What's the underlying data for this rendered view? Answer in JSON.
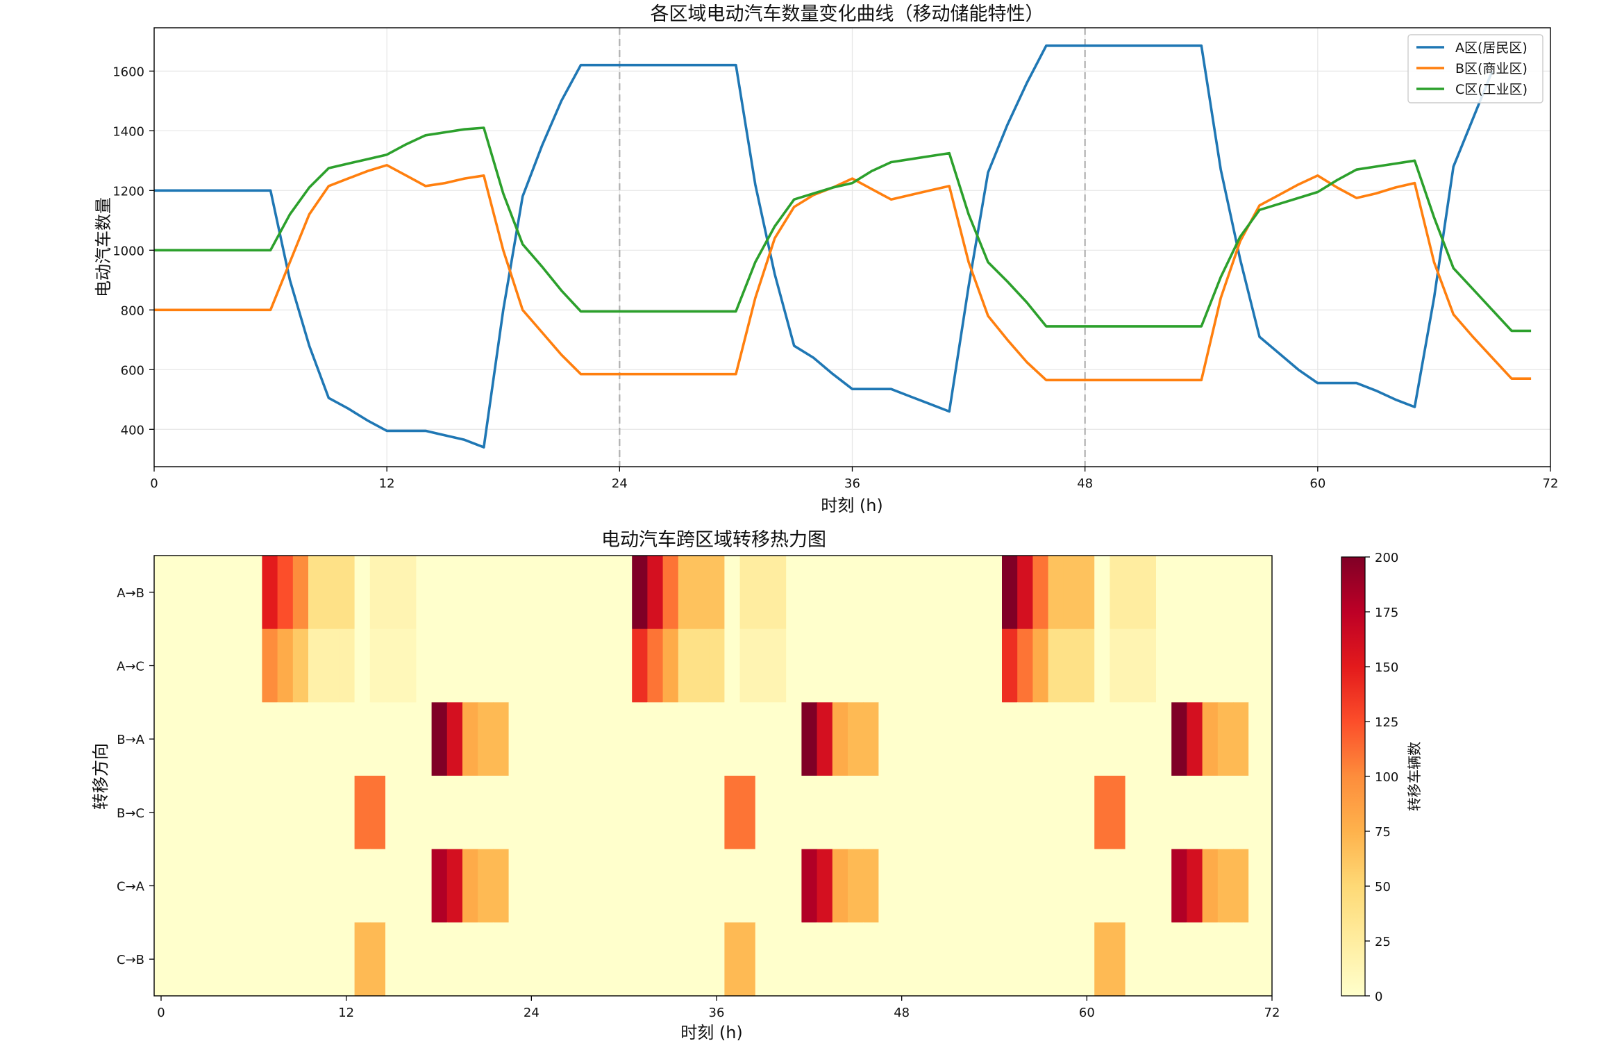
{
  "chart_data": [
    {
      "type": "line",
      "title": "各区域电动汽车数量变化曲线（移动储能特性）",
      "xlabel": "时刻 (h)",
      "ylabel": "电动汽车数量",
      "xlim": [
        0,
        72
      ],
      "ylim": [
        275,
        1745
      ],
      "xticks": [
        0,
        12,
        24,
        36,
        48,
        60,
        72
      ],
      "yticks": [
        400,
        600,
        800,
        1000,
        1200,
        1400,
        1600
      ],
      "grid": true,
      "legend_position": "top-right",
      "vlines": [
        24,
        48
      ],
      "x": [
        0,
        1,
        2,
        3,
        4,
        5,
        6,
        7,
        8,
        9,
        10,
        11,
        12,
        13,
        14,
        15,
        16,
        17,
        18,
        19,
        20,
        21,
        22,
        23,
        24,
        25,
        26,
        27,
        28,
        29,
        30,
        31,
        32,
        33,
        34,
        35,
        36,
        37,
        38,
        39,
        40,
        41,
        42,
        43,
        44,
        45,
        46,
        47,
        48,
        49,
        50,
        51,
        52,
        53,
        54,
        55,
        56,
        57,
        58,
        59,
        60,
        61,
        62,
        63,
        64,
        65,
        66,
        67,
        68,
        69,
        70,
        71
      ],
      "series": [
        {
          "name": "A区(居民区)",
          "color": "#1f77b4",
          "values": [
            1200,
            1200,
            1200,
            1200,
            1200,
            1200,
            1200,
            900,
            680,
            505,
            470,
            430,
            395,
            395,
            395,
            380,
            365,
            340,
            800,
            1180,
            1350,
            1500,
            1620,
            1620,
            1620,
            1620,
            1620,
            1620,
            1620,
            1620,
            1620,
            1220,
            920,
            680,
            640,
            585,
            535,
            535,
            535,
            510,
            485,
            460,
            880,
            1260,
            1420,
            1560,
            1685,
            1685,
            1685,
            1685,
            1685,
            1685,
            1685,
            1685,
            1685,
            1270,
            970,
            710,
            655,
            600,
            555,
            555,
            555,
            530,
            500,
            475,
            840,
            1280,
            1440,
            1600,
            null,
            null
          ]
        },
        {
          "name": "B区(商业区)",
          "color": "#ff7f0e",
          "values": [
            800,
            800,
            800,
            800,
            800,
            800,
            800,
            960,
            1120,
            1215,
            1240,
            1265,
            1285,
            1250,
            1215,
            1225,
            1240,
            1250,
            1000,
            800,
            725,
            650,
            585,
            585,
            585,
            585,
            585,
            585,
            585,
            585,
            585,
            840,
            1040,
            1145,
            1185,
            1210,
            1240,
            1205,
            1170,
            1185,
            1200,
            1215,
            960,
            780,
            700,
            625,
            565,
            565,
            565,
            565,
            565,
            565,
            565,
            565,
            565,
            840,
            1030,
            1150,
            1185,
            1220,
            1250,
            1210,
            1175,
            1190,
            1210,
            1225,
            960,
            785,
            710,
            640,
            570,
            570
          ]
        },
        {
          "name": "C区(工业区)",
          "color": "#2ca02c",
          "values": [
            1000,
            1000,
            1000,
            1000,
            1000,
            1000,
            1000,
            1120,
            1210,
            1275,
            1290,
            1305,
            1320,
            1355,
            1385,
            1395,
            1405,
            1410,
            1190,
            1020,
            945,
            865,
            795,
            795,
            795,
            795,
            795,
            795,
            795,
            795,
            795,
            960,
            1080,
            1170,
            1190,
            1210,
            1225,
            1265,
            1295,
            1305,
            1315,
            1325,
            1120,
            960,
            895,
            825,
            745,
            745,
            745,
            745,
            745,
            745,
            745,
            745,
            745,
            910,
            1045,
            1135,
            1155,
            1175,
            1195,
            1235,
            1270,
            1280,
            1290,
            1300,
            1110,
            940,
            870,
            800,
            730,
            730
          ]
        }
      ]
    },
    {
      "type": "heatmap",
      "title": "电动汽车跨区域转移热力图",
      "xlabel": "时刻 (h)",
      "ylabel": "转移方向",
      "xlim": [
        0,
        72
      ],
      "xticks": [
        0,
        12,
        24,
        36,
        48,
        60,
        72
      ],
      "rows": [
        "A→B",
        "A→C",
        "B→A",
        "B→C",
        "C→A",
        "C→B"
      ],
      "colorbar": {
        "label": "转移车辆数",
        "min": 0,
        "max": 200,
        "ticks": [
          0,
          25,
          50,
          75,
          100,
          125,
          150,
          175,
          200
        ],
        "colormap": "YlOrRd"
      },
      "values": [
        [
          0,
          0,
          0,
          0,
          0,
          0,
          0,
          150,
          125,
          100,
          40,
          40,
          40,
          0,
          15,
          15,
          15,
          0,
          0,
          0,
          0,
          0,
          0,
          0,
          0,
          0,
          0,
          0,
          0,
          0,
          0,
          200,
          160,
          110,
          65,
          65,
          65,
          0,
          25,
          25,
          25,
          0,
          0,
          0,
          0,
          0,
          0,
          0,
          0,
          0,
          0,
          0,
          0,
          0,
          0,
          200,
          160,
          110,
          65,
          65,
          65,
          0,
          25,
          25,
          25,
          0,
          0,
          0,
          0,
          0,
          0,
          0
        ],
        [
          0,
          0,
          0,
          0,
          0,
          0,
          0,
          100,
          80,
          60,
          20,
          20,
          20,
          0,
          10,
          10,
          10,
          0,
          0,
          0,
          0,
          0,
          0,
          0,
          0,
          0,
          0,
          0,
          0,
          0,
          0,
          140,
          110,
          80,
          40,
          40,
          40,
          0,
          15,
          15,
          15,
          0,
          0,
          0,
          0,
          0,
          0,
          0,
          0,
          0,
          0,
          0,
          0,
          0,
          0,
          140,
          110,
          80,
          40,
          40,
          40,
          0,
          15,
          15,
          15,
          0,
          0,
          0,
          0,
          0,
          0,
          0
        ],
        [
          0,
          0,
          0,
          0,
          0,
          0,
          0,
          0,
          0,
          0,
          0,
          0,
          0,
          0,
          0,
          0,
          0,
          0,
          200,
          160,
          80,
          70,
          70,
          0,
          0,
          0,
          0,
          0,
          0,
          0,
          0,
          0,
          0,
          0,
          0,
          0,
          0,
          0,
          0,
          0,
          0,
          0,
          200,
          160,
          80,
          70,
          70,
          0,
          0,
          0,
          0,
          0,
          0,
          0,
          0,
          0,
          0,
          0,
          0,
          0,
          0,
          0,
          0,
          0,
          0,
          0,
          200,
          160,
          80,
          70,
          70,
          0
        ],
        [
          0,
          0,
          0,
          0,
          0,
          0,
          0,
          0,
          0,
          0,
          0,
          0,
          0,
          110,
          110,
          0,
          0,
          0,
          0,
          0,
          0,
          0,
          0,
          0,
          0,
          0,
          0,
          0,
          0,
          0,
          0,
          0,
          0,
          0,
          0,
          0,
          0,
          110,
          110,
          0,
          0,
          0,
          0,
          0,
          0,
          0,
          0,
          0,
          0,
          0,
          0,
          0,
          0,
          0,
          0,
          0,
          0,
          0,
          0,
          0,
          0,
          110,
          110,
          0,
          0,
          0,
          0,
          0,
          0,
          0,
          0,
          0
        ],
        [
          0,
          0,
          0,
          0,
          0,
          0,
          0,
          0,
          0,
          0,
          0,
          0,
          0,
          0,
          0,
          0,
          0,
          0,
          180,
          160,
          80,
          70,
          70,
          0,
          0,
          0,
          0,
          0,
          0,
          0,
          0,
          0,
          0,
          0,
          0,
          0,
          0,
          0,
          0,
          0,
          0,
          0,
          180,
          160,
          80,
          70,
          70,
          0,
          0,
          0,
          0,
          0,
          0,
          0,
          0,
          0,
          0,
          0,
          0,
          0,
          0,
          0,
          0,
          0,
          0,
          0,
          180,
          160,
          80,
          70,
          70,
          0
        ],
        [
          0,
          0,
          0,
          0,
          0,
          0,
          0,
          0,
          0,
          0,
          0,
          0,
          0,
          70,
          70,
          0,
          0,
          0,
          0,
          0,
          0,
          0,
          0,
          0,
          0,
          0,
          0,
          0,
          0,
          0,
          0,
          0,
          0,
          0,
          0,
          0,
          0,
          70,
          70,
          0,
          0,
          0,
          0,
          0,
          0,
          0,
          0,
          0,
          0,
          0,
          0,
          0,
          0,
          0,
          0,
          0,
          0,
          0,
          0,
          0,
          0,
          70,
          70,
          0,
          0,
          0,
          0,
          0,
          0,
          0,
          0,
          0
        ]
      ]
    }
  ]
}
